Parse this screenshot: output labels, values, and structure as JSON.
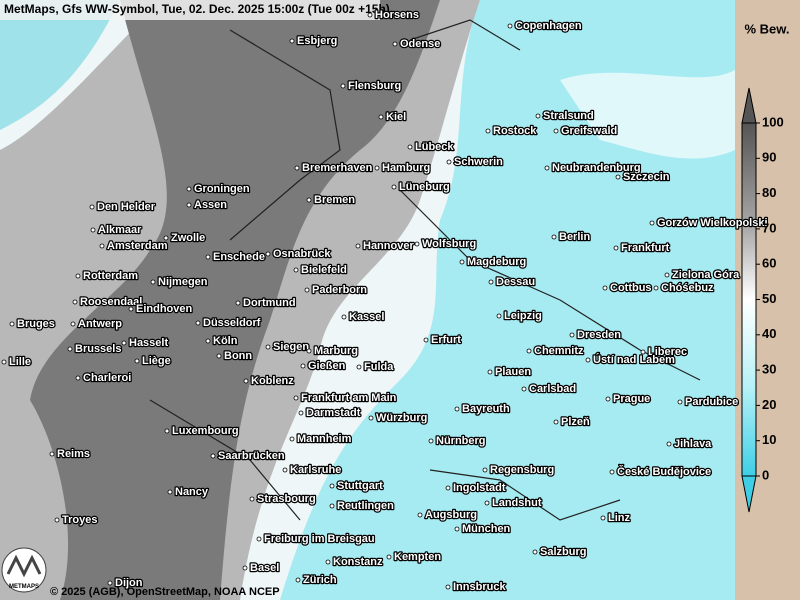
{
  "header": {
    "title": "MetMaps, Gfs WW-Symbol, Tue, 02. Dec. 2025 15:00z (Tue 00z +15h)"
  },
  "map": {
    "cities": [
      "Horsens",
      "Copenhagen",
      "Esbjerg",
      "Odense",
      "Flensburg",
      "Kiel",
      "Stralsund",
      "Rostock",
      "Greifswald",
      "Lübeck",
      "Schwerin",
      "Bremerhaven",
      "Hamburg",
      "Neubrandenburg",
      "Szczecin",
      "Groningen",
      "Lüneburg",
      "Den Helder",
      "Assen",
      "Bremen",
      "Gorzów Wielkopolski",
      "Alkmaar",
      "Zwolle",
      "Amsterdam",
      "Berlin",
      "Wolfsburg",
      "Hannover",
      "Frankfurt",
      "Osnabrück",
      "Enschede",
      "Magdeburg",
      "Bielefeld",
      "Rotterdam",
      "Nijmegen",
      "Zielona Góra",
      "Dessau",
      "Paderborn",
      "Cottbus",
      "Chóśebuz",
      "Roosendaal",
      "Eindhoven",
      "Dortmund",
      "Kassel",
      "Leipzig",
      "Bruges",
      "Antwerp",
      "Düsseldorf",
      "Dresden",
      "Hasselt",
      "Köln",
      "Erfurt",
      "Brussels",
      "Siegen",
      "Marburg",
      "Chemnitz",
      "Liberec",
      "Bonn",
      "Ústí nad Labem",
      "Lille",
      "Liège",
      "Gießen",
      "Fulda",
      "Plauen",
      "Charleroi",
      "Koblenz",
      "Carlsbad",
      "Frankfurt am Main",
      "Prague",
      "Pardubice",
      "Darmstadt",
      "Bayreuth",
      "Würzburg",
      "Plzeň",
      "Luxembourg",
      "Mannheim",
      "Nürnberg",
      "Jihlava",
      "Reims",
      "Saarbrücken",
      "Regensburg",
      "České Budějovice",
      "Karlsruhe",
      "Stuttgart",
      "Ingolstadt",
      "Nancy",
      "Strasbourg",
      "Reutlingen",
      "Landshut",
      "Troyes",
      "Linz",
      "Augsburg",
      "München",
      "Freiburg im Breisgau",
      "Salzburg",
      "Konstanz",
      "Kempten",
      "Basel",
      "Zürich",
      "Innsbruck",
      "Dijon"
    ],
    "logo": "METMAPS",
    "copyright": "© 2025 (AGB), OpenStreetMap, NOAA NCEP"
  },
  "legend": {
    "title": "% Bew.",
    "ticks": [
      0,
      10,
      20,
      30,
      40,
      50,
      60,
      70,
      80,
      90,
      100
    ]
  }
}
